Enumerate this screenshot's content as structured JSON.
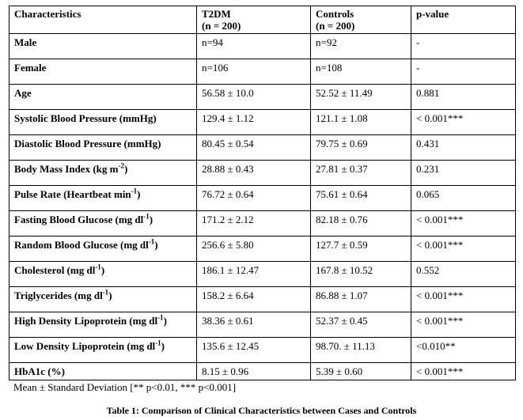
{
  "table": {
    "headers": [
      {
        "line1": "Characteristics",
        "line2": ""
      },
      {
        "line1": "T2DM",
        "line2": "(n = 200)"
      },
      {
        "line1": "Controls",
        "line2": "(n = 200)"
      },
      {
        "line1": "p-value",
        "line2": ""
      }
    ],
    "rows": [
      {
        "label": "Male",
        "sup": "",
        "label_suffix": "",
        "t2dm": "n=94",
        "controls": "n=92",
        "p": "-"
      },
      {
        "label": "Female",
        "sup": "",
        "label_suffix": "",
        "t2dm": "n=106",
        "controls": "n=108",
        "p": "-"
      },
      {
        "label": "Age",
        "sup": "",
        "label_suffix": "",
        "t2dm": "56.58 ± 10.0",
        "controls": "52.52 ± 11.49",
        "p": "0.881"
      },
      {
        "label": "Systolic Blood Pressure  (mmHg)",
        "sup": "",
        "label_suffix": "",
        "t2dm": "129.4 ± 1.12",
        "controls": "121.1 ± 1.08",
        "p": "< 0.001***"
      },
      {
        "label": "Diastolic Blood Pressure  (mmHg)",
        "sup": "",
        "label_suffix": "",
        "t2dm": "80.45 ± 0.54",
        "controls": "79.75 ± 0.69",
        "p": "0.431"
      },
      {
        "label": "Body Mass Index  (kg m",
        "sup": "-2",
        "label_suffix": ")",
        "t2dm": "28.88 ± 0.43",
        "controls": "27.81 ± 0.37",
        "p": "0.231"
      },
      {
        "label": "Pulse Rate  (Heartbeat min",
        "sup": "-1",
        "label_suffix": ")",
        "t2dm": "76.72 ± 0.64",
        "controls": "75.61 ± 0.64",
        "p": "0.065"
      },
      {
        "label": "Fasting Blood Glucose  (mg dl",
        "sup": "-1",
        "label_suffix": ")",
        "t2dm": "171.2 ± 2.12",
        "controls": "82.18 ± 0.76",
        "p": "< 0.001***"
      },
      {
        "label": "Random Blood Glucose  (mg dl",
        "sup": "-1",
        "label_suffix": ")",
        "t2dm": "256.6 ± 5.80",
        "controls": "127.7 ± 0.59",
        "p": "< 0.001***"
      },
      {
        "label": "Cholesterol (mg dl",
        "sup": "-1",
        "label_suffix": ")",
        "t2dm": "186.1 ± 12.47",
        "controls": "167.8 ± 10.52",
        "p": "0.552"
      },
      {
        "label": "Triglycerides (mg dl",
        "sup": "-1",
        "label_suffix": ")",
        "t2dm": "158.2 ± 6.64",
        "controls": "86.88 ± 1.07",
        "p": "< 0.001***"
      },
      {
        "label": "High Density Lipoprotein (mg dl",
        "sup": "-1",
        "label_suffix": ")",
        "t2dm": "38.36 ± 0.61",
        "controls": "52.37 ± 0.45",
        "p": "< 0.001***"
      },
      {
        "label": "Low Density Lipoprotein  (mg dl",
        "sup": "-1",
        "label_suffix": ")",
        "t2dm": "135.6 ± 12.45",
        "controls": "98.70. ± 11.13",
        "p": "<0.010**"
      },
      {
        "label": "HbA1c (%)",
        "sup": "",
        "label_suffix": "",
        "t2dm": "8.15 ± 0.96",
        "controls": "5.39 ± 0.60",
        "p": "< 0.001***"
      }
    ]
  },
  "footnote": "Mean ± Standard Deviation [** p<0.01,   *** p<0.001]",
  "caption": "Table 1: Comparison of Clinical Characteristics between Cases and Controls"
}
